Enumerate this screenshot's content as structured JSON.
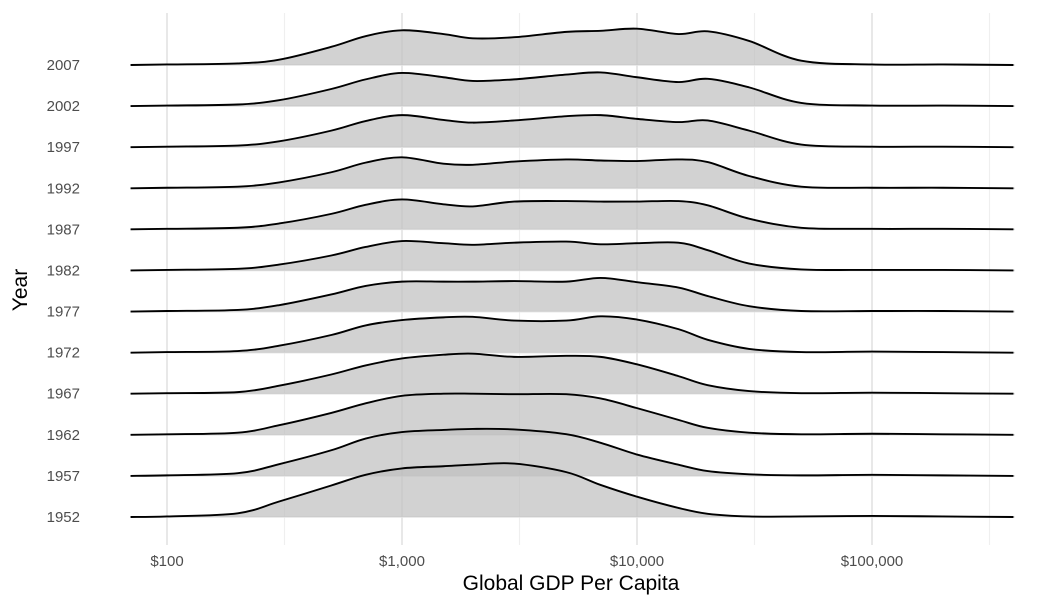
{
  "chart_data": {
    "type": "ridgeline",
    "title": "",
    "xlabel": "Global GDP Per Capita",
    "ylabel": "Year",
    "x_scale": "log10",
    "xlim": [
      70,
      400000
    ],
    "x_ticks": [
      100,
      1000,
      10000,
      100000
    ],
    "x_tick_labels": [
      "$100",
      "$1,000",
      "$10,000",
      "$100,000"
    ],
    "grid": true,
    "legend": "none",
    "fill_color": "#bfbfbf",
    "fill_opacity": 0.7,
    "line_color": "#000000",
    "peak_to_row_spacing": 1.3,
    "density_points_x": [
      70,
      100,
      200,
      300,
      500,
      700,
      1000,
      1500,
      2000,
      3000,
      5000,
      7000,
      10000,
      15000,
      20000,
      30000,
      50000,
      100000,
      200000,
      400000
    ],
    "series": [
      {
        "name": "1952",
        "density": [
          0,
          0.01,
          0.07,
          0.29,
          0.59,
          0.79,
          0.91,
          0.95,
          0.98,
          1.0,
          0.84,
          0.6,
          0.38,
          0.17,
          0.06,
          0.01,
          0.01,
          0.02,
          0.01,
          0
        ]
      },
      {
        "name": "1957",
        "density": [
          0,
          0.01,
          0.05,
          0.22,
          0.48,
          0.7,
          0.82,
          0.86,
          0.88,
          0.87,
          0.78,
          0.62,
          0.4,
          0.21,
          0.09,
          0.03,
          0.01,
          0.02,
          0.01,
          0
        ]
      },
      {
        "name": "1962",
        "density": [
          0,
          0.01,
          0.04,
          0.18,
          0.41,
          0.59,
          0.73,
          0.77,
          0.77,
          0.76,
          0.76,
          0.68,
          0.5,
          0.28,
          0.13,
          0.04,
          0.01,
          0.02,
          0.01,
          0
        ]
      },
      {
        "name": "1967",
        "density": [
          0,
          0.01,
          0.03,
          0.15,
          0.36,
          0.53,
          0.66,
          0.73,
          0.75,
          0.69,
          0.71,
          0.69,
          0.55,
          0.33,
          0.16,
          0.05,
          0.01,
          0.02,
          0.01,
          0
        ]
      },
      {
        "name": "1972",
        "density": [
          0,
          0.01,
          0.03,
          0.13,
          0.33,
          0.51,
          0.61,
          0.66,
          0.67,
          0.6,
          0.6,
          0.68,
          0.62,
          0.44,
          0.24,
          0.07,
          0.01,
          0.02,
          0.01,
          0
        ]
      },
      {
        "name": "1977",
        "density": [
          0,
          0.01,
          0.03,
          0.12,
          0.32,
          0.48,
          0.56,
          0.56,
          0.56,
          0.57,
          0.56,
          0.63,
          0.55,
          0.45,
          0.29,
          0.1,
          0.01,
          0.01,
          0.01,
          0
        ]
      },
      {
        "name": "1982",
        "density": [
          0,
          0.01,
          0.03,
          0.11,
          0.28,
          0.44,
          0.55,
          0.51,
          0.48,
          0.52,
          0.54,
          0.49,
          0.51,
          0.52,
          0.38,
          0.13,
          0.02,
          0.01,
          0.01,
          0
        ]
      },
      {
        "name": "1987",
        "density": [
          0,
          0.01,
          0.03,
          0.11,
          0.29,
          0.46,
          0.56,
          0.47,
          0.43,
          0.52,
          0.53,
          0.52,
          0.52,
          0.53,
          0.45,
          0.2,
          0.03,
          0.01,
          0.01,
          0
        ]
      },
      {
        "name": "1992",
        "density": [
          0,
          0.01,
          0.03,
          0.11,
          0.3,
          0.48,
          0.58,
          0.46,
          0.44,
          0.5,
          0.54,
          0.52,
          0.51,
          0.54,
          0.49,
          0.23,
          0.03,
          0.01,
          0.01,
          0
        ]
      },
      {
        "name": "1997",
        "density": [
          0,
          0.01,
          0.03,
          0.11,
          0.31,
          0.49,
          0.6,
          0.51,
          0.46,
          0.5,
          0.58,
          0.6,
          0.53,
          0.47,
          0.5,
          0.31,
          0.05,
          0.01,
          0.01,
          0
        ]
      },
      {
        "name": "2002",
        "density": [
          0,
          0.01,
          0.03,
          0.11,
          0.32,
          0.5,
          0.62,
          0.54,
          0.47,
          0.5,
          0.59,
          0.63,
          0.54,
          0.45,
          0.51,
          0.35,
          0.06,
          0.01,
          0.01,
          0
        ]
      },
      {
        "name": "2007",
        "density": [
          0,
          0.01,
          0.03,
          0.1,
          0.34,
          0.54,
          0.65,
          0.58,
          0.5,
          0.52,
          0.62,
          0.64,
          0.68,
          0.58,
          0.63,
          0.45,
          0.08,
          0.01,
          0.01,
          0
        ]
      }
    ]
  }
}
